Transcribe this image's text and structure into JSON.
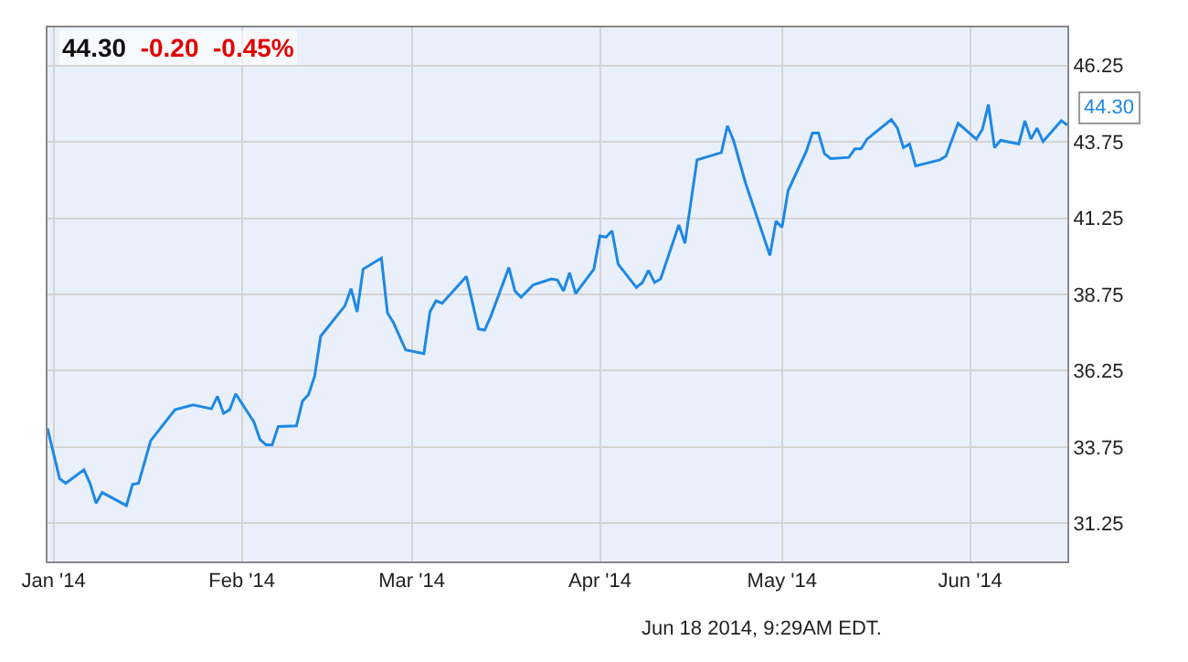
{
  "chart_data": {
    "type": "line",
    "title": "44.30 -0.20 -0.45%",
    "x": [
      "2013-12-31",
      "2014-01-02",
      "2014-01-03",
      "2014-01-06",
      "2014-01-07",
      "2014-01-08",
      "2014-01-09",
      "2014-01-13",
      "2014-01-14",
      "2014-01-15",
      "2014-01-17",
      "2014-01-21",
      "2014-01-24",
      "2014-01-27",
      "2014-01-28",
      "2014-01-29",
      "2014-01-30",
      "2014-01-31",
      "2014-02-03",
      "2014-02-04",
      "2014-02-05",
      "2014-02-06",
      "2014-02-07",
      "2014-02-10",
      "2014-02-11",
      "2014-02-12",
      "2014-02-13",
      "2014-02-14",
      "2014-02-18",
      "2014-02-19",
      "2014-02-20",
      "2014-02-21",
      "2014-02-24",
      "2014-02-25",
      "2014-02-26",
      "2014-02-28",
      "2014-03-03",
      "2014-03-04",
      "2014-03-05",
      "2014-03-06",
      "2014-03-10",
      "2014-03-12",
      "2014-03-13",
      "2014-03-14",
      "2014-03-17",
      "2014-03-18",
      "2014-03-19",
      "2014-03-21",
      "2014-03-24",
      "2014-03-25",
      "2014-03-26",
      "2014-03-27",
      "2014-03-28",
      "2014-03-31",
      "2014-04-01",
      "2014-04-02",
      "2014-04-03",
      "2014-04-04",
      "2014-04-07",
      "2014-04-08",
      "2014-04-09",
      "2014-04-10",
      "2014-04-11",
      "2014-04-14",
      "2014-04-15",
      "2014-04-17",
      "2014-04-21",
      "2014-04-22",
      "2014-04-23",
      "2014-04-25",
      "2014-04-29",
      "2014-04-30",
      "2014-05-01",
      "2014-05-02",
      "2014-05-05",
      "2014-05-06",
      "2014-05-07",
      "2014-05-08",
      "2014-05-09",
      "2014-05-12",
      "2014-05-13",
      "2014-05-14",
      "2014-05-15",
      "2014-05-19",
      "2014-05-20",
      "2014-05-21",
      "2014-05-22",
      "2014-05-23",
      "2014-05-27",
      "2014-05-28",
      "2014-05-30",
      "2014-06-02",
      "2014-06-03",
      "2014-06-04",
      "2014-06-05",
      "2014-06-06",
      "2014-06-09",
      "2014-06-10",
      "2014-06-11",
      "2014-06-12",
      "2014-06-13",
      "2014-06-16",
      "2014-06-17"
    ],
    "series": [
      {
        "color": "#1e88e5",
        "values": [
          34.36,
          32.71,
          32.56,
          33.0,
          32.56,
          31.91,
          32.26,
          31.83,
          32.52,
          32.56,
          33.96,
          34.97,
          35.13,
          35.0,
          35.41,
          34.85,
          34.97,
          35.49,
          34.57,
          34.0,
          33.82,
          33.82,
          34.42,
          34.44,
          35.25,
          35.47,
          36.07,
          37.38,
          38.38,
          38.94,
          38.18,
          39.58,
          39.94,
          38.14,
          37.82,
          36.93,
          36.81,
          38.18,
          38.54,
          38.46,
          39.34,
          37.62,
          37.58,
          38.02,
          39.63,
          38.86,
          38.66,
          39.06,
          39.26,
          39.22,
          38.86,
          39.46,
          38.78,
          39.58,
          40.67,
          40.63,
          40.83,
          39.74,
          38.98,
          39.14,
          39.54,
          39.14,
          39.26,
          41.03,
          40.43,
          43.16,
          43.4,
          44.28,
          43.8,
          42.39,
          40.03,
          41.15,
          40.95,
          42.15,
          43.44,
          44.04,
          44.04,
          43.36,
          43.2,
          43.24,
          43.52,
          43.52,
          43.84,
          44.48,
          44.2,
          43.56,
          43.68,
          42.96,
          43.16,
          43.28,
          44.36,
          43.84,
          44.16,
          44.97,
          43.56,
          43.8,
          43.68,
          44.44,
          43.84,
          44.2,
          43.76,
          44.44,
          44.3
        ]
      }
    ],
    "xlim": [
      "2013-12-31",
      "2014-06-17"
    ],
    "xticks": [
      {
        "value": "2014-01-01",
        "label": "Jan '14"
      },
      {
        "value": "2014-02-01",
        "label": "Feb '14"
      },
      {
        "value": "2014-03-01",
        "label": "Mar '14"
      },
      {
        "value": "2014-04-01",
        "label": "Apr '14"
      },
      {
        "value": "2014-05-01",
        "label": "May '14"
      },
      {
        "value": "2014-06-01",
        "label": "Jun '14"
      }
    ],
    "ylim": [
      30,
      47.5
    ],
    "yticks": [
      31.25,
      33.75,
      36.25,
      38.75,
      41.25,
      43.75,
      46.25
    ],
    "grid": true,
    "legend": false,
    "marker": "none",
    "line_style": "solid",
    "annotations": [
      {
        "text": "44.30",
        "x": "2014-06-17",
        "y": 44.3
      },
      "Jun 18 2014, 9:29AM EDT."
    ]
  }
}
